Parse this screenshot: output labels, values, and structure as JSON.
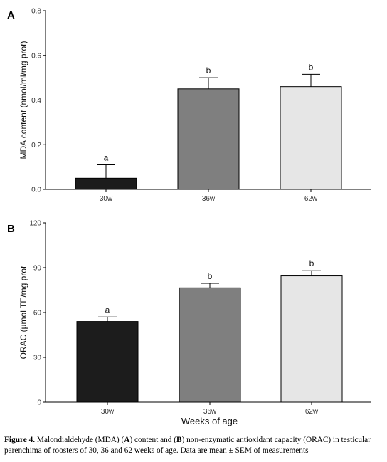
{
  "chart_data": [
    {
      "type": "bar",
      "panel": "A",
      "categories": [
        "30w",
        "36w",
        "62w"
      ],
      "values": [
        0.05,
        0.45,
        0.46
      ],
      "errors": [
        0.06,
        0.05,
        0.055
      ],
      "significance": [
        "a",
        "b",
        "b"
      ],
      "colors": [
        "#1c1c1c",
        "#7f7f7f",
        "#e6e6e6"
      ],
      "ylabel": "MDA content (nmol/ml/mg prot)",
      "xlabel": "",
      "ylim": [
        0,
        0.8
      ],
      "yticks": [
        "0.0",
        "0.2",
        "0.4",
        "0.6",
        "0.8"
      ]
    },
    {
      "type": "bar",
      "panel": "B",
      "categories": [
        "30w",
        "36w",
        "62w"
      ],
      "values": [
        54,
        76.5,
        84.5
      ],
      "errors": [
        3,
        3,
        3.5
      ],
      "significance": [
        "a",
        "b",
        "b"
      ],
      "colors": [
        "#1c1c1c",
        "#7f7f7f",
        "#e6e6e6"
      ],
      "ylabel": "ORAC (μmol TE/mg prot",
      "xlabel": "Weeks of age",
      "ylim": [
        0,
        120
      ],
      "yticks": [
        "0",
        "30",
        "60",
        "90",
        "120"
      ]
    }
  ],
  "caption": {
    "label": "Figure 4.",
    "seg1": " Malondialdehyde (MDA) (",
    "A": "A",
    "seg2": ") content and (",
    "B": "B",
    "seg3": ") non-enzymatic antioxidant capacity (ORAC) in testicular parenchima of roosters of 30, 36 and 62 weeks of age. Data are mean ± SEM of measurements"
  }
}
